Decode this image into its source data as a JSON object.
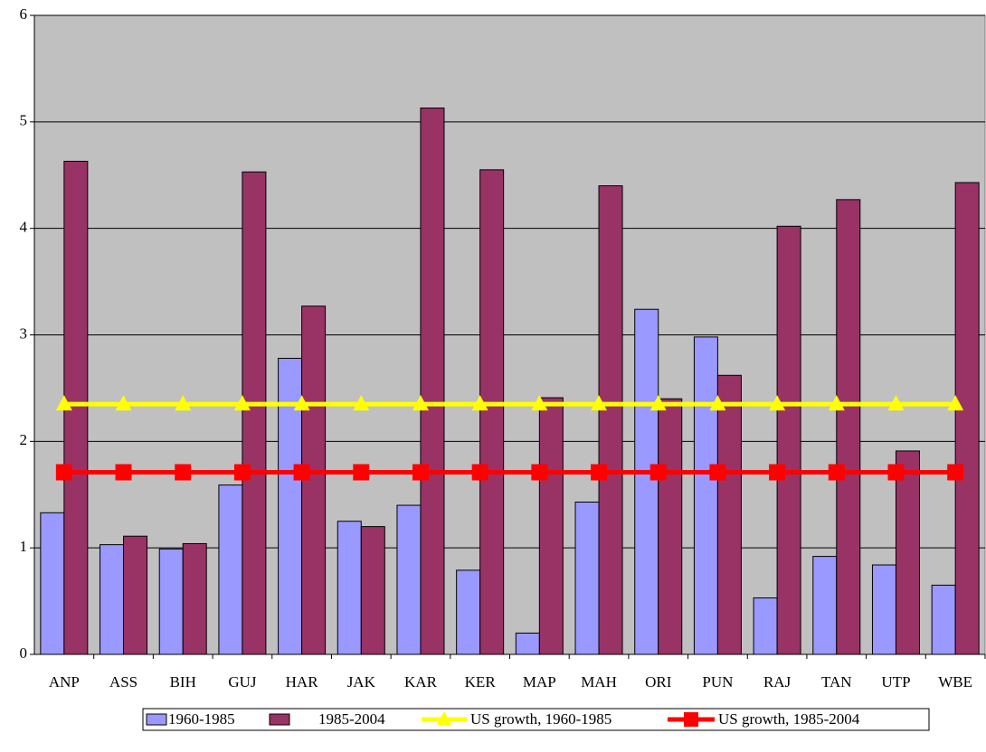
{
  "chart_data": {
    "type": "bar",
    "categories": [
      "ANP",
      "ASS",
      "BIH",
      "GUJ",
      "HAR",
      "JAK",
      "KAR",
      "KER",
      "MAP",
      "MAH",
      "ORI",
      "PUN",
      "RAJ",
      "TAN",
      "UTP",
      "WBE"
    ],
    "series": [
      {
        "name": "1960-1985",
        "type": "bar",
        "color": "#9999ff",
        "values": [
          1.33,
          1.03,
          0.99,
          1.59,
          2.78,
          1.25,
          1.4,
          0.79,
          0.2,
          1.43,
          3.24,
          2.98,
          0.53,
          0.92,
          0.84,
          0.65
        ]
      },
      {
        "name": "1985-2004",
        "type": "bar",
        "color": "#993366",
        "values": [
          4.63,
          1.11,
          1.04,
          4.53,
          3.27,
          1.2,
          5.13,
          4.55,
          2.41,
          4.4,
          2.4,
          2.62,
          4.02,
          4.27,
          1.91,
          4.43
        ]
      },
      {
        "name": "US growth, 1960-1985",
        "type": "line",
        "marker": "triangle",
        "color": "#ffff00",
        "values": [
          2.35,
          2.35,
          2.35,
          2.35,
          2.35,
          2.35,
          2.35,
          2.35,
          2.35,
          2.35,
          2.35,
          2.35,
          2.35,
          2.35,
          2.35,
          2.35
        ]
      },
      {
        "name": "US growth, 1985-2004",
        "type": "line",
        "marker": "square",
        "color": "#ff0000",
        "values": [
          1.71,
          1.71,
          1.71,
          1.71,
          1.71,
          1.71,
          1.71,
          1.71,
          1.71,
          1.71,
          1.71,
          1.71,
          1.71,
          1.71,
          1.71,
          1.71
        ]
      }
    ],
    "ylim": [
      0,
      6
    ],
    "yticks": [
      0,
      1,
      2,
      3,
      4,
      5,
      6
    ],
    "grid": true,
    "legend": "bottom"
  }
}
